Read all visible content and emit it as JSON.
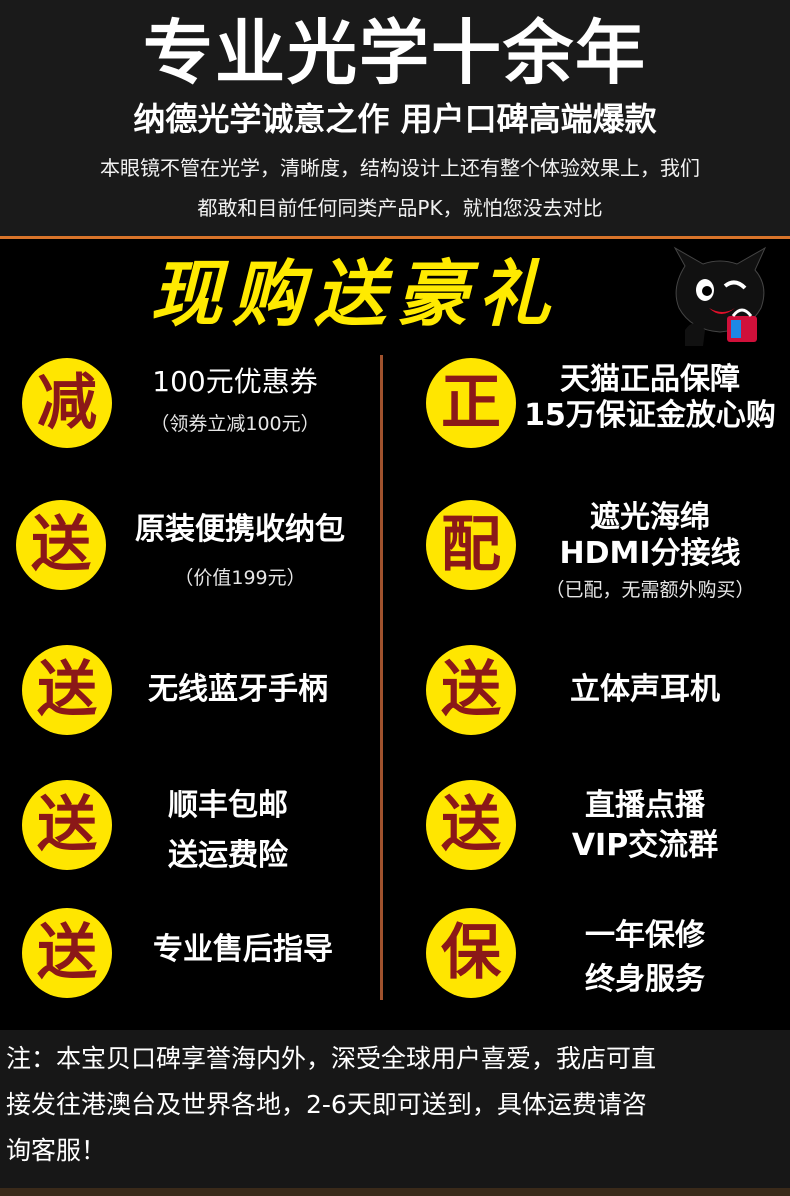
{
  "header": {
    "title": "专业光学十余年",
    "subtitle": "纳德光学诚意之作 用户口碑高端爆款",
    "desc_line1": "本眼镜不管在光学，清晰度，结构设计上还有整个体验效果上，我们",
    "desc_line2": "都敢和目前任何同类产品PK，就怕您没去对比"
  },
  "gift": {
    "title": "现购送豪礼"
  },
  "left": [
    {
      "badge": "减",
      "line1": "100元优惠券",
      "line2": "（领券立减100元）"
    },
    {
      "badge": "送",
      "line1": "原装便携收纳包",
      "line2": "（价值199元）"
    },
    {
      "badge": "送",
      "line1": "无线蓝牙手柄"
    },
    {
      "badge": "送",
      "line1": "顺丰包邮",
      "line2": "送运费险"
    },
    {
      "badge": "送",
      "line1": "专业售后指导"
    }
  ],
  "right": [
    {
      "badge": "正",
      "line1": "天猫正品保障",
      "line2": "15万保证金放心购"
    },
    {
      "badge": "配",
      "line1": "遮光海绵",
      "line2": "HDMI分接线",
      "line3": "（已配，无需额外购买）"
    },
    {
      "badge": "送",
      "line1": "立体声耳机"
    },
    {
      "badge": "送",
      "line1": "直播点播",
      "line2": "VIP交流群"
    },
    {
      "badge": "保",
      "line1": "一年保修",
      "line2": "终身服务"
    }
  ],
  "note": {
    "line1": "注：本宝贝口碑享誉海内外，深受全球用户喜爱，我店可直",
    "line2": "接发往港澳台及世界各地，2-6天即可送到，具体运费请咨",
    "line3": "询客服！"
  }
}
